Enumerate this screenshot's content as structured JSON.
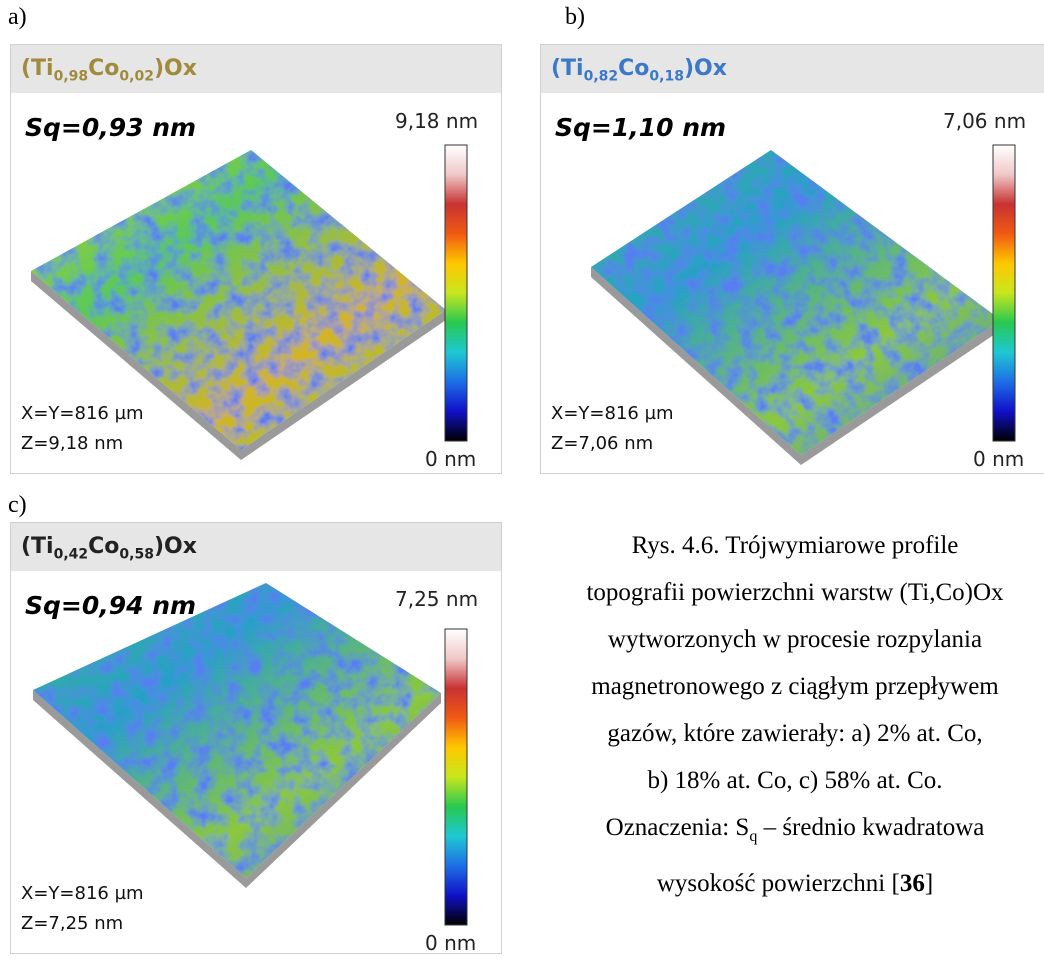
{
  "panels": [
    {
      "letter": "a)",
      "title": {
        "open": "(Ti",
        "sub1": "0,98",
        "mid": "Co",
        "sub2": "0,02",
        "close": ")Ox"
      },
      "title_color": "#a08a3c",
      "sq": "Sq=0,93 nm",
      "scale_max": "9,18 nm",
      "scale_min": "0 nm",
      "xy": "X=Y=816 µm",
      "z": "Z=9,18 nm"
    },
    {
      "letter": "b)",
      "title": {
        "open": "(Ti",
        "sub1": "0,82",
        "mid": "Co",
        "sub2": "0,18",
        "close": ")Ox"
      },
      "title_color": "#3c78c8",
      "sq": "Sq=1,10 nm",
      "scale_max": "7,06 nm",
      "scale_min": "0 nm",
      "xy": "X=Y=816 µm",
      "z": "Z=7,06 nm"
    },
    {
      "letter": "c)",
      "title": {
        "open": "(Ti",
        "sub1": "0,42",
        "mid": "Co",
        "sub2": "0,58",
        "close": ")Ox"
      },
      "title_color": "#222222",
      "sq": "Sq=0,94 nm",
      "scale_max": "7,25 nm",
      "scale_min": "0 nm",
      "xy": "X=Y=816 µm",
      "z": "Z=7,25 nm"
    }
  ],
  "caption": {
    "line1": "Rys. 4.6. Trójwymiarowe profile",
    "line2": "topografii powierzchni warstw (Ti,Co)Ox",
    "line3": "wytworzonych w procesie rozpylania",
    "line4": "magnetronowego z ciągłym przepływem",
    "line5": "gazów, które zawierały: a) 2% at. Co,",
    "line6": "b) 18% at. Co, c) 58% at. Co.",
    "line7_pre": "Oznaczenia: S",
    "line7_sub": "q",
    "line7_post": " – średnio kwadratowa",
    "line8_pre": "wysokość powierzchni [",
    "line8_ref": "36",
    "line8_post": "]"
  }
}
